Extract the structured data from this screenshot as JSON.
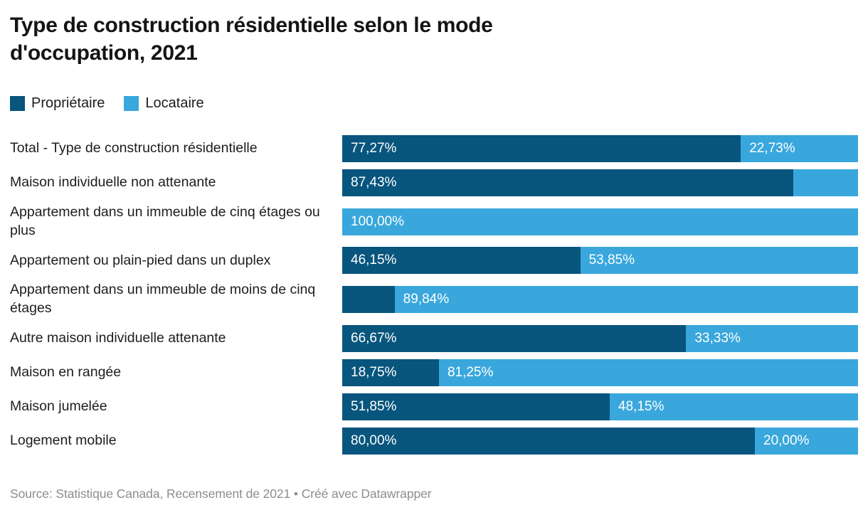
{
  "header": {
    "title_line1": "Type de construction résidentielle selon le mode",
    "title_line2": "d'occupation, 2021"
  },
  "legend": {
    "items": [
      {
        "label": "Propriétaire",
        "color": "#08557d"
      },
      {
        "label": "Locataire",
        "color": "#39a7dc"
      }
    ]
  },
  "colors": {
    "proprietaire": "#08557d",
    "locataire": "#39a7dc",
    "title_text": "#141414",
    "body_text": "#1d1d1d",
    "value_text": "#ffffff",
    "footer_text": "#8d8d8d"
  },
  "chart_data": {
    "type": "bar",
    "variant": "horizontal-stacked-100pct",
    "title": "Type de construction résidentielle selon le mode d'occupation, 2021",
    "unit": "%",
    "stack_total": 100,
    "legend_position": "top-left",
    "axis_hidden": true,
    "categories": [
      "Total - Type de construction résidentielle",
      "Maison individuelle non attenante",
      "Appartement dans un immeuble de cinq étages ou plus",
      "Appartement ou plain-pied dans un duplex",
      "Appartement dans un immeuble de moins de cinq étages",
      "Autre maison individuelle attenante",
      "Maison en rangée",
      "Maison jumelée",
      "Logement mobile"
    ],
    "series": [
      {
        "name": "Propriétaire",
        "color": "#08557d",
        "values": [
          77.27,
          87.43,
          0,
          46.15,
          10.16,
          66.67,
          18.75,
          51.85,
          80.0
        ]
      },
      {
        "name": "Locataire",
        "color": "#39a7dc",
        "values": [
          22.73,
          12.57,
          100.0,
          53.85,
          89.84,
          33.33,
          81.25,
          48.15,
          20.0
        ]
      }
    ],
    "rows": [
      {
        "category": "Total - Type de construction résidentielle",
        "owner_pct": 77.27,
        "owner_label": "77,27%",
        "renter_pct": 22.73,
        "renter_label": "22,73%"
      },
      {
        "category": "Maison individuelle non attenante",
        "owner_pct": 87.43,
        "owner_label": "87,43%",
        "renter_pct": 12.57,
        "renter_label": ""
      },
      {
        "category": "Appartement dans un immeuble de cinq étages ou plus",
        "owner_pct": 0,
        "owner_label": "",
        "renter_pct": 100,
        "renter_label": "100,00%"
      },
      {
        "category": "Appartement ou plain-pied dans un duplex",
        "owner_pct": 46.15,
        "owner_label": "46,15%",
        "renter_pct": 53.85,
        "renter_label": "53,85%"
      },
      {
        "category": "Appartement dans un immeuble de moins de cinq étages",
        "owner_pct": 10.16,
        "owner_label": "",
        "renter_pct": 89.84,
        "renter_label": "89,84%"
      },
      {
        "category": "Autre maison individuelle attenante",
        "owner_pct": 66.67,
        "owner_label": "66,67%",
        "renter_pct": 33.33,
        "renter_label": "33,33%"
      },
      {
        "category": "Maison en rangée",
        "owner_pct": 18.75,
        "owner_label": "18,75%",
        "renter_pct": 81.25,
        "renter_label": "81,25%"
      },
      {
        "category": "Maison jumelée",
        "owner_pct": 51.85,
        "owner_label": "51,85%",
        "renter_pct": 48.15,
        "renter_label": "48,15%"
      },
      {
        "category": "Logement mobile",
        "owner_pct": 80.0,
        "owner_label": "80,00%",
        "renter_pct": 20.0,
        "renter_label": "20,00%"
      }
    ]
  },
  "footer": {
    "source_text": "Source: Statistique Canada, Recensement de 2021",
    "separator": " • ",
    "attribution": "Créé avec Datawrapper"
  }
}
